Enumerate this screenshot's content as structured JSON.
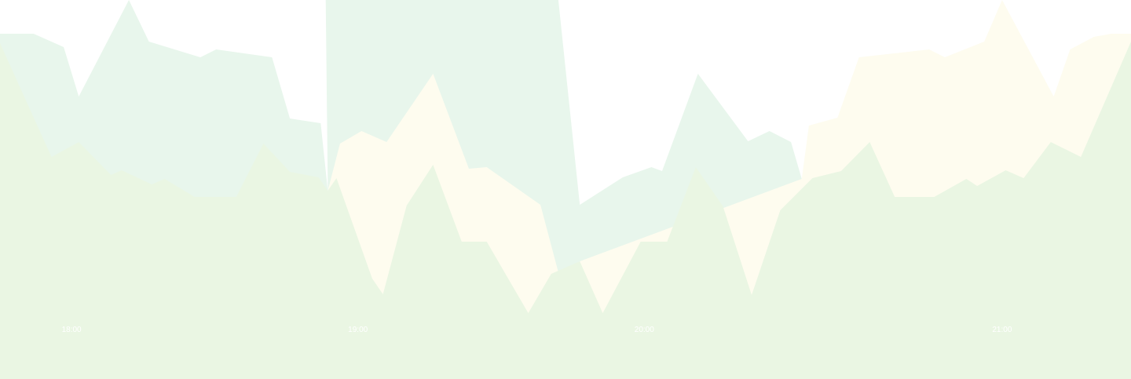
{
  "chart_data": {
    "type": "area",
    "x_tick_labels": [
      "18:00",
      "19:00",
      "20:00",
      "21:00"
    ],
    "x_tick_positions": [
      1,
      5,
      9,
      14
    ],
    "ylim": [
      0,
      483
    ],
    "grid": false,
    "legend": "none",
    "series": [
      {
        "fill": "#e8f6ec",
        "points": [
          [
            0.0,
            440
          ],
          [
            0.47,
            440
          ],
          [
            0.89,
            423
          ],
          [
            1.1,
            360
          ],
          [
            1.8,
            483
          ],
          [
            2.08,
            430
          ],
          [
            2.8,
            410
          ],
          [
            3.02,
            420
          ],
          [
            3.8,
            410
          ],
          [
            4.05,
            332
          ],
          [
            4.48,
            326
          ],
          [
            4.58,
            240
          ],
          [
            4.55,
            483
          ],
          [
            5.5,
            483
          ],
          [
            6.0,
            483
          ],
          [
            7.0,
            483
          ],
          [
            7.8,
            483
          ],
          [
            8.1,
            222
          ],
          [
            8.7,
            257
          ],
          [
            9.1,
            270
          ],
          [
            9.25,
            265
          ],
          [
            9.75,
            389
          ],
          [
            10.45,
            303
          ],
          [
            10.75,
            316
          ],
          [
            11.05,
            302
          ],
          [
            11.2,
            255
          ]
        ]
      },
      {
        "fill": "#fefcef",
        "points": [
          [
            4.58,
            240
          ],
          [
            4.75,
            300
          ],
          [
            5.05,
            316
          ],
          [
            5.4,
            302
          ],
          [
            6.05,
            389
          ],
          [
            6.55,
            268
          ],
          [
            6.8,
            270
          ],
          [
            7.55,
            222
          ],
          [
            7.8,
            136
          ],
          [
            8.1,
            150
          ],
          [
            11.2,
            255
          ],
          [
            11.3,
            323
          ],
          [
            11.7,
            333
          ],
          [
            12.0,
            410
          ],
          [
            12.98,
            420
          ],
          [
            13.2,
            410
          ],
          [
            13.75,
            430
          ],
          [
            14.0,
            483
          ],
          [
            14.72,
            360
          ],
          [
            14.95,
            420
          ],
          [
            15.28,
            436
          ],
          [
            15.52,
            440
          ],
          [
            15.8,
            440
          ],
          [
            15.8,
            210
          ]
        ]
      },
      {
        "fill": "#eaf6e3",
        "points": [
          [
            0.0,
            428
          ],
          [
            0.72,
            283
          ],
          [
            1.1,
            302
          ],
          [
            1.55,
            260
          ],
          [
            1.7,
            266
          ],
          [
            2.12,
            248
          ],
          [
            2.3,
            255
          ],
          [
            2.72,
            232
          ],
          [
            3.3,
            232
          ],
          [
            3.68,
            300
          ],
          [
            4.05,
            264
          ],
          [
            4.45,
            257
          ],
          [
            4.58,
            240
          ],
          [
            4.7,
            256
          ],
          [
            5.2,
            128
          ],
          [
            5.35,
            108
          ],
          [
            5.68,
            221
          ],
          [
            6.05,
            273
          ],
          [
            6.45,
            175
          ],
          [
            6.8,
            175
          ],
          [
            7.38,
            84
          ],
          [
            7.7,
            134
          ],
          [
            8.05,
            148
          ],
          [
            8.1,
            150
          ],
          [
            8.42,
            84
          ],
          [
            8.95,
            175
          ],
          [
            9.32,
            175
          ],
          [
            9.72,
            270
          ],
          [
            10.1,
            220
          ],
          [
            10.5,
            107
          ],
          [
            10.9,
            215
          ],
          [
            11.35,
            256
          ],
          [
            11.75,
            265
          ],
          [
            12.15,
            302
          ],
          [
            12.5,
            232
          ],
          [
            13.05,
            232
          ],
          [
            13.5,
            255
          ],
          [
            13.65,
            246
          ],
          [
            14.05,
            266
          ],
          [
            14.3,
            256
          ],
          [
            14.68,
            302
          ],
          [
            15.1,
            283
          ],
          [
            15.8,
            430
          ]
        ]
      }
    ]
  }
}
